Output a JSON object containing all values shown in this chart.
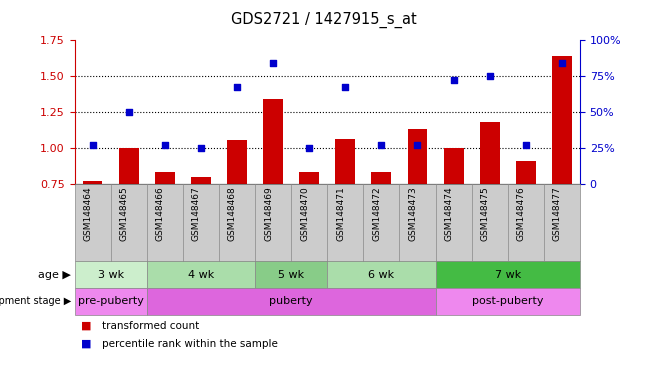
{
  "title": "GDS2721 / 1427915_s_at",
  "samples": [
    "GSM148464",
    "GSM148465",
    "GSM148466",
    "GSM148467",
    "GSM148468",
    "GSM148469",
    "GSM148470",
    "GSM148471",
    "GSM148472",
    "GSM148473",
    "GSM148474",
    "GSM148475",
    "GSM148476",
    "GSM148477"
  ],
  "bar_values": [
    0.775,
    1.0,
    0.835,
    0.8,
    1.055,
    1.34,
    0.835,
    1.065,
    0.835,
    1.135,
    1.0,
    1.185,
    0.915,
    1.64
  ],
  "dot_values": [
    0.27,
    0.5,
    0.27,
    0.25,
    0.675,
    0.84,
    0.25,
    0.675,
    0.27,
    0.27,
    0.725,
    0.75,
    0.27,
    0.84
  ],
  "bar_color": "#cc0000",
  "dot_color": "#0000cc",
  "bar_bottom": 0.75,
  "ylim_left": [
    0.75,
    1.75
  ],
  "ylim_right": [
    0.0,
    1.0
  ],
  "yticks_left": [
    0.75,
    1.0,
    1.25,
    1.5,
    1.75
  ],
  "yticks_right": [
    0.0,
    0.25,
    0.5,
    0.75,
    1.0
  ],
  "yticklabels_right": [
    "0",
    "25%",
    "50%",
    "75%",
    "100%"
  ],
  "hlines": [
    1.0,
    1.25,
    1.5
  ],
  "age_groups": [
    {
      "label": "3 wk",
      "start": 0,
      "end": 2,
      "color": "#cceecc"
    },
    {
      "label": "4 wk",
      "start": 2,
      "end": 5,
      "color": "#aaddaa"
    },
    {
      "label": "5 wk",
      "start": 5,
      "end": 7,
      "color": "#88cc88"
    },
    {
      "label": "6 wk",
      "start": 7,
      "end": 10,
      "color": "#aaddaa"
    },
    {
      "label": "7 wk",
      "start": 10,
      "end": 14,
      "color": "#44bb44"
    }
  ],
  "dev_groups": [
    {
      "label": "pre-puberty",
      "start": 0,
      "end": 2,
      "color": "#ee88ee"
    },
    {
      "label": "puberty",
      "start": 2,
      "end": 10,
      "color": "#dd66dd"
    },
    {
      "label": "post-puberty",
      "start": 10,
      "end": 14,
      "color": "#ee88ee"
    }
  ],
  "age_row_label": "age",
  "dev_row_label": "development stage",
  "legend_bar_label": "transformed count",
  "legend_dot_label": "percentile rank within the sample",
  "tick_color_left": "#cc0000",
  "tick_color_right": "#0000cc",
  "xtick_bg_color": "#cccccc",
  "border_color": "#888888"
}
